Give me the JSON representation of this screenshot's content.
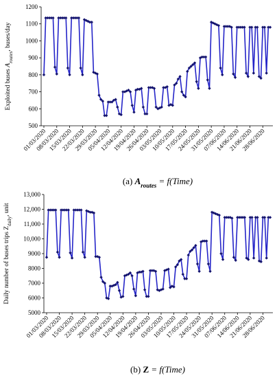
{
  "chart_data": [
    {
      "type": "line",
      "color": "#2424c8",
      "marker_color": "#14146e",
      "y_label": [
        "Exploited buses ",
        "A",
        "routes",
        ", buses/day"
      ],
      "caption": [
        "(a) ",
        "A",
        "routes",
        " = f(Time)"
      ],
      "ylim": [
        500,
        1200
      ],
      "yticks": [
        500,
        600,
        700,
        800,
        900,
        1000,
        1100,
        1200
      ],
      "categories": [
        "01/03/2020",
        null,
        null,
        null,
        null,
        null,
        null,
        "08/03/2020",
        null,
        null,
        null,
        null,
        null,
        null,
        "15/03/2020",
        null,
        null,
        null,
        null,
        null,
        null,
        "22/03/2020",
        null,
        null,
        null,
        null,
        null,
        null,
        "29/03/2020",
        null,
        null,
        null,
        null,
        null,
        null,
        "05/04/2020",
        null,
        null,
        null,
        null,
        null,
        null,
        "12/04/2020",
        null,
        null,
        null,
        null,
        null,
        null,
        "19/04/2020",
        null,
        null,
        null,
        null,
        null,
        null,
        "26/04/2020",
        null,
        null,
        null,
        null,
        null,
        null,
        "03/05/2020",
        null,
        null,
        null,
        null,
        null,
        null,
        "10/05/2020",
        null,
        null,
        null,
        null,
        null,
        null,
        "17/05/2020",
        null,
        null,
        null,
        null,
        null,
        null,
        "24/05/2020",
        null,
        null,
        null,
        null,
        null,
        null,
        "31/05/2020",
        null,
        null,
        null,
        null,
        null,
        null,
        "07/06/2020",
        null,
        null,
        null,
        null,
        null,
        null,
        "14/06/2020",
        null,
        null,
        null,
        null,
        null,
        null,
        "21/06/2020",
        null,
        null,
        null,
        null,
        null,
        null,
        "28/06/2020",
        null,
        null,
        null,
        null
      ],
      "values": [
        800,
        1135,
        1135,
        1135,
        1135,
        1135,
        845,
        805,
        1135,
        1135,
        1135,
        1135,
        1135,
        840,
        800,
        1135,
        1135,
        1135,
        1135,
        1135,
        840,
        800,
        1125,
        1120,
        1115,
        1110,
        1110,
        815,
        810,
        805,
        680,
        655,
        645,
        560,
        560,
        640,
        640,
        640,
        650,
        655,
        610,
        570,
        565,
        700,
        700,
        705,
        710,
        700,
        620,
        580,
        710,
        715,
        715,
        720,
        610,
        570,
        570,
        725,
        725,
        725,
        720,
        610,
        600,
        605,
        610,
        725,
        725,
        730,
        620,
        625,
        620,
        740,
        750,
        775,
        790,
        700,
        680,
        670,
        820,
        840,
        850,
        860,
        870,
        760,
        720,
        900,
        905,
        905,
        905,
        770,
        720,
        1110,
        1105,
        1100,
        1095,
        1090,
        840,
        800,
        1085,
        1085,
        1085,
        1085,
        1080,
        805,
        785,
        1080,
        1080,
        1080,
        1080,
        1080,
        810,
        790,
        1080,
        1080,
        810,
        1080,
        1080,
        790,
        780,
        1080,
        1080,
        810,
        1080,
        1080
      ]
    },
    {
      "type": "line",
      "color": "#2424c8",
      "marker_color": "#14146e",
      "y_label": [
        "Daily number of buses trips Z",
        "daily",
        ", unit"
      ],
      "caption": [
        "(b) ",
        "Z",
        " = f(Time)"
      ],
      "ylim": [
        5000,
        13000
      ],
      "yticks": [
        {
          "value": 5000,
          "label": "5000"
        },
        {
          "value": 6000,
          "label": "6000"
        },
        {
          "value": 7000,
          "label": "7000"
        },
        {
          "value": 8000,
          "label": "8000"
        },
        {
          "value": 9000,
          "label": "9000"
        },
        {
          "value": 10000,
          "label": "10,000"
        },
        {
          "value": 11000,
          "label": "11,000"
        },
        {
          "value": 12000,
          "label": "12,000"
        },
        {
          "value": 13000,
          "label": "13,000"
        }
      ],
      "categories": [
        "01/03/2020",
        null,
        null,
        null,
        null,
        null,
        null,
        "08/03/2020",
        null,
        null,
        null,
        null,
        null,
        null,
        "15/03/2020",
        null,
        null,
        null,
        null,
        null,
        null,
        "22/03/2020",
        null,
        null,
        null,
        null,
        null,
        null,
        "29/03/2020",
        null,
        null,
        null,
        null,
        null,
        null,
        "05/04/2020",
        null,
        null,
        null,
        null,
        null,
        null,
        "12/04/2020",
        null,
        null,
        null,
        null,
        null,
        null,
        "19/04/2020",
        null,
        null,
        null,
        null,
        null,
        null,
        "26/04/2020",
        null,
        null,
        null,
        null,
        null,
        null,
        "03/05/2020",
        null,
        null,
        null,
        null,
        null,
        null,
        "10/05/2020",
        null,
        null,
        null,
        null,
        null,
        null,
        "17/05/2020",
        null,
        null,
        null,
        null,
        null,
        null,
        "24/05/2020",
        null,
        null,
        null,
        null,
        null,
        null,
        "31/05/2020",
        null,
        null,
        null,
        null,
        null,
        null,
        "07/06/2020",
        null,
        null,
        null,
        null,
        null,
        null,
        "14/06/2020",
        null,
        null,
        null,
        null,
        null,
        null,
        "21/06/2020",
        null,
        null,
        null,
        null,
        null,
        null,
        "28/06/2020",
        null,
        null,
        null,
        null
      ],
      "values": [
        8750,
        11950,
        11950,
        11950,
        11950,
        11950,
        9100,
        8750,
        11950,
        11950,
        11950,
        11950,
        11950,
        9050,
        8700,
        11950,
        11950,
        11950,
        11950,
        11950,
        9100,
        8750,
        11900,
        11850,
        11800,
        11800,
        11750,
        8800,
        8800,
        8750,
        7400,
        7100,
        7000,
        6000,
        5950,
        6800,
        6800,
        6850,
        6900,
        7050,
        6500,
        6050,
        6100,
        7500,
        7550,
        7600,
        7700,
        7500,
        6600,
        6150,
        7700,
        7750,
        7750,
        7800,
        6550,
        6100,
        6100,
        7850,
        7850,
        7850,
        7800,
        6550,
        6500,
        6550,
        6600,
        7850,
        7900,
        7950,
        6700,
        6800,
        6750,
        8100,
        8250,
        8500,
        8600,
        7600,
        7300,
        7300,
        8900,
        9150,
        9250,
        9400,
        9550,
        8300,
        7800,
        9800,
        9850,
        9850,
        9850,
        8300,
        7800,
        11800,
        11750,
        11700,
        11650,
        11600,
        9000,
        8600,
        11450,
        11450,
        11450,
        11450,
        11400,
        8750,
        8550,
        11450,
        11450,
        11450,
        11450,
        11450,
        8700,
        8600,
        11450,
        11450,
        8700,
        11450,
        11450,
        8500,
        8450,
        11450,
        11450,
        8700,
        11450,
        11450
      ]
    }
  ]
}
